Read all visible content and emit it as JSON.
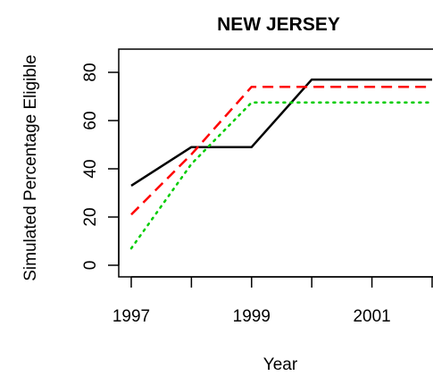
{
  "chart_data": {
    "type": "line",
    "title": "NEW JERSEY",
    "xlabel": "Year",
    "ylabel": "Simulated Percentage Eligible",
    "x": [
      1997,
      1998,
      1999,
      2000,
      2001,
      2002
    ],
    "xticks": [
      1997,
      1998,
      1999,
      2000,
      2001,
      2002
    ],
    "xtick_labels": [
      "1997",
      "",
      "1999",
      "",
      "2001",
      ""
    ],
    "yticks": [
      0,
      20,
      40,
      60,
      80
    ],
    "yticks_labels": [
      "0",
      "20",
      "40",
      "60",
      "80"
    ],
    "xlim": [
      1997,
      2002
    ],
    "ylim": [
      0,
      80
    ],
    "grid": false,
    "legend": "none",
    "series": [
      {
        "values": [
          33,
          49,
          49,
          77,
          77,
          77
        ],
        "color": "#000000",
        "style": "solid"
      },
      {
        "values": [
          21,
          46,
          74,
          74,
          74,
          74
        ],
        "color": "#ff0000",
        "style": "dashed"
      },
      {
        "values": [
          7,
          42,
          67.5,
          67.5,
          67.5,
          67.5
        ],
        "color": "#00cc00",
        "style": "dotted"
      }
    ]
  }
}
